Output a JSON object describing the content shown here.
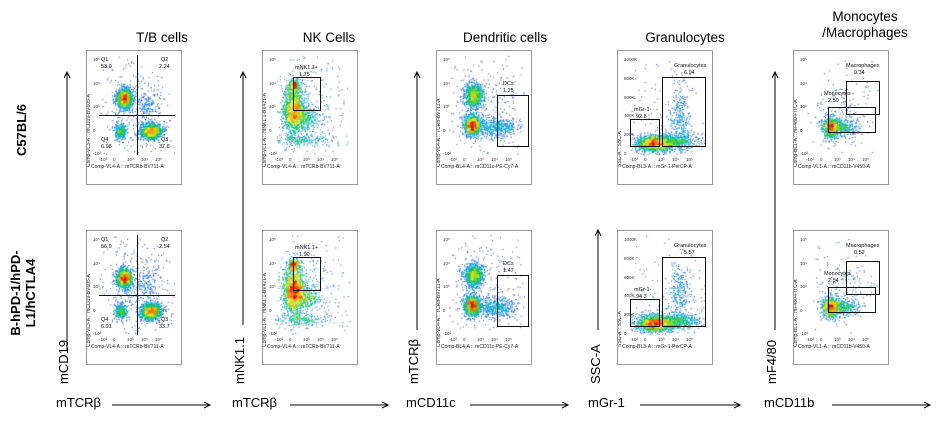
{
  "columns": [
    {
      "title": "T/B cells"
    },
    {
      "title": "NK Cells"
    },
    {
      "title": "Dendritic cells"
    },
    {
      "title": "Granulocytes"
    },
    {
      "title": "Monocytes\n/Macrophages"
    }
  ],
  "rows": [
    {
      "label": "C57BL/6"
    },
    {
      "label": "B-hPD-1/hPD-\nL1/hCTLA4"
    }
  ],
  "big_axes": [
    {
      "y": "mCD19",
      "x": "mTCRβ"
    },
    {
      "y": "mNK1.1",
      "x": "mTCRβ"
    },
    {
      "y": "mTCRβ",
      "x": "mCD11c"
    },
    {
      "y": "SSC-A",
      "x": "mGr-1"
    },
    {
      "y": "mF4/80",
      "x": "mCD11b"
    }
  ],
  "chart_data": [
    {
      "type": "scatter",
      "title": "T/B cells",
      "xlabel": "Comp-VL4-A :: mTCRb-BV711-A",
      "ylabel": "Comp-VL3-A :: mCD19-BV605-A",
      "panels": [
        {
          "row": "C57BL/6",
          "quadrants": {
            "Q1": "53.0",
            "Q2": "2.24",
            "Q3": "37.8",
            "Q4": "6.98"
          }
        },
        {
          "row": "B-hPD-1/hPD-L1/hCTLA4",
          "quadrants": {
            "Q1": "56.9",
            "Q2": "2.54",
            "Q3": "33.7",
            "Q4": "6.91"
          }
        }
      ]
    },
    {
      "type": "scatter",
      "title": "NK Cells",
      "xlabel": "Comp-VL4-A :: mTCRb-BV711-A",
      "ylabel": "Comp-VL1-A :: mNK1.1-BV421-A",
      "panels": [
        {
          "row": "C57BL/6",
          "gate": {
            "name": "mNK1.1+",
            "value": "1.75"
          }
        },
        {
          "row": "B-hPD-1/hPD-L1/hCTLA4",
          "gate": {
            "name": "mNK1.1+",
            "value": "1.90"
          }
        }
      ]
    },
    {
      "type": "scatter",
      "title": "Dendritic cells",
      "xlabel": "Comp-BL4-A :: mCD11c-PE-Cy7-A",
      "ylabel": "Comp-VL4-A :: TCRb-BV711-A",
      "panels": [
        {
          "row": "C57BL/6",
          "gate": {
            "name": "DCs",
            "value": "1.25"
          }
        },
        {
          "row": "B-hPD-1/hPD-L1/hCTLA4",
          "gate": {
            "name": "DCs",
            "value": "1.47"
          }
        }
      ]
    },
    {
      "type": "scatter",
      "title": "Granulocytes",
      "xlabel": "Comp-BL3-A :: mGr-1-PerCP-A",
      "ylabel": "SSC-A :: SSC-A",
      "yticks": [
        "1000K",
        "800K",
        "600K",
        "400K",
        "200K",
        "0"
      ],
      "panels": [
        {
          "row": "C57BL/6",
          "gates": [
            {
              "name": "Granulocytes",
              "value": "6.94"
            },
            {
              "name": "mGr-1-",
              "value": "92.8"
            }
          ]
        },
        {
          "row": "B-hPD-1/hPD-L1/hCTLA4",
          "gates": [
            {
              "name": "Granulocytes",
              "value": "5.57"
            },
            {
              "name": "mGr-1-",
              "value": "94.3"
            }
          ]
        }
      ]
    },
    {
      "type": "scatter",
      "title": "Monocytes/Macrophages",
      "xlabel": "Comp-VL1-A :: mCD11b-V450-A",
      "ylabel": "Comp-BL1-A :: mF480-FITC-A",
      "panels": [
        {
          "row": "C57BL/6",
          "gates": [
            {
              "name": "Macrophages",
              "value": "0.34"
            },
            {
              "name": "Monocytes",
              "value": "2.50"
            }
          ]
        },
        {
          "row": "B-hPD-1/hPD-L1/hCTLA4",
          "gates": [
            {
              "name": "Macrophages",
              "value": "0.52"
            },
            {
              "name": "Monocytes",
              "value": "2.54"
            }
          ]
        }
      ]
    }
  ],
  "log_ticks": [
    "10⁵",
    "10⁴",
    "10³",
    "0",
    "-10³"
  ],
  "log_xticks": [
    "-10³",
    "0",
    "10³",
    "10⁴",
    "10⁵"
  ]
}
